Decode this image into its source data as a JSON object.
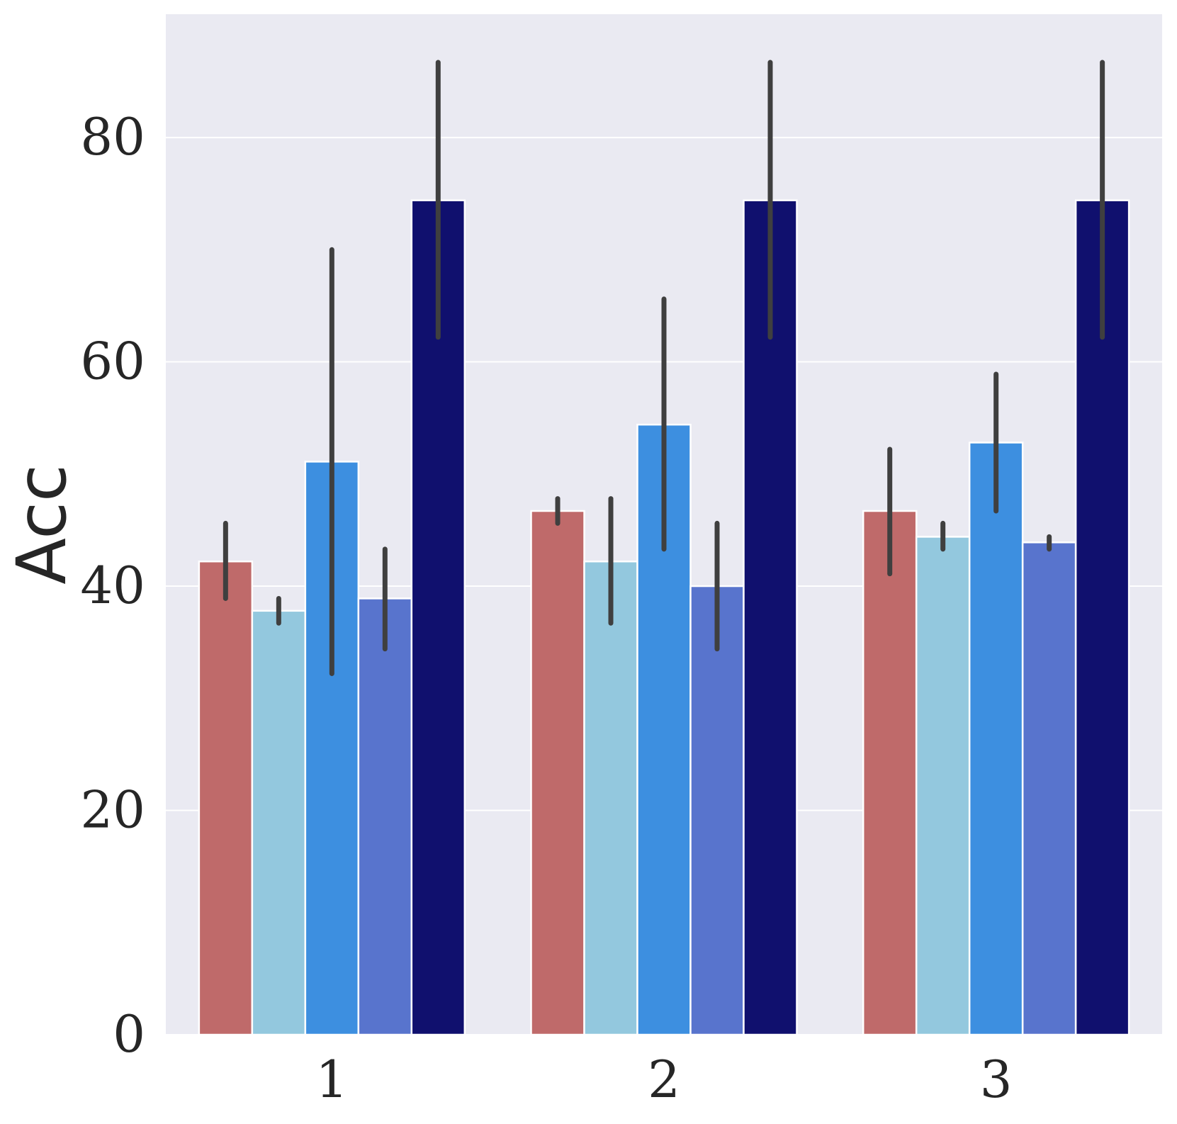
{
  "chart_data": {
    "type": "bar",
    "ylabel": "Acc",
    "xlabel": "",
    "categories": [
      "1",
      "2",
      "3"
    ],
    "ylim": [
      0,
      91
    ],
    "yticks": [
      0,
      20,
      40,
      60,
      80
    ],
    "grid": true,
    "background": "#EAEAF2",
    "errorbar_color": "#3F3F3F",
    "series": [
      {
        "color": "#BF6A6A",
        "values": [
          42.2,
          46.7,
          46.7
        ],
        "err_low": [
          38.9,
          45.6,
          41.1
        ],
        "err_high": [
          45.6,
          47.8,
          52.2
        ]
      },
      {
        "color": "#93C8DE",
        "values": [
          37.8,
          42.2,
          44.4
        ],
        "err_low": [
          36.7,
          36.7,
          43.3
        ],
        "err_high": [
          38.9,
          47.8,
          45.6
        ]
      },
      {
        "color": "#3D8FE0",
        "values": [
          51.1,
          54.4,
          52.8
        ],
        "err_low": [
          32.2,
          43.3,
          46.7
        ],
        "err_high": [
          70.0,
          65.6,
          58.9
        ]
      },
      {
        "color": "#5874CD",
        "values": [
          38.9,
          40.0,
          43.9
        ],
        "err_low": [
          34.4,
          34.4,
          43.3
        ],
        "err_high": [
          43.3,
          45.6,
          44.4
        ]
      },
      {
        "color": "#10106E",
        "values": [
          74.4,
          74.4,
          74.4
        ],
        "err_low": [
          62.2,
          62.2,
          62.2
        ],
        "err_high": [
          86.7,
          86.7,
          86.7
        ]
      }
    ]
  }
}
